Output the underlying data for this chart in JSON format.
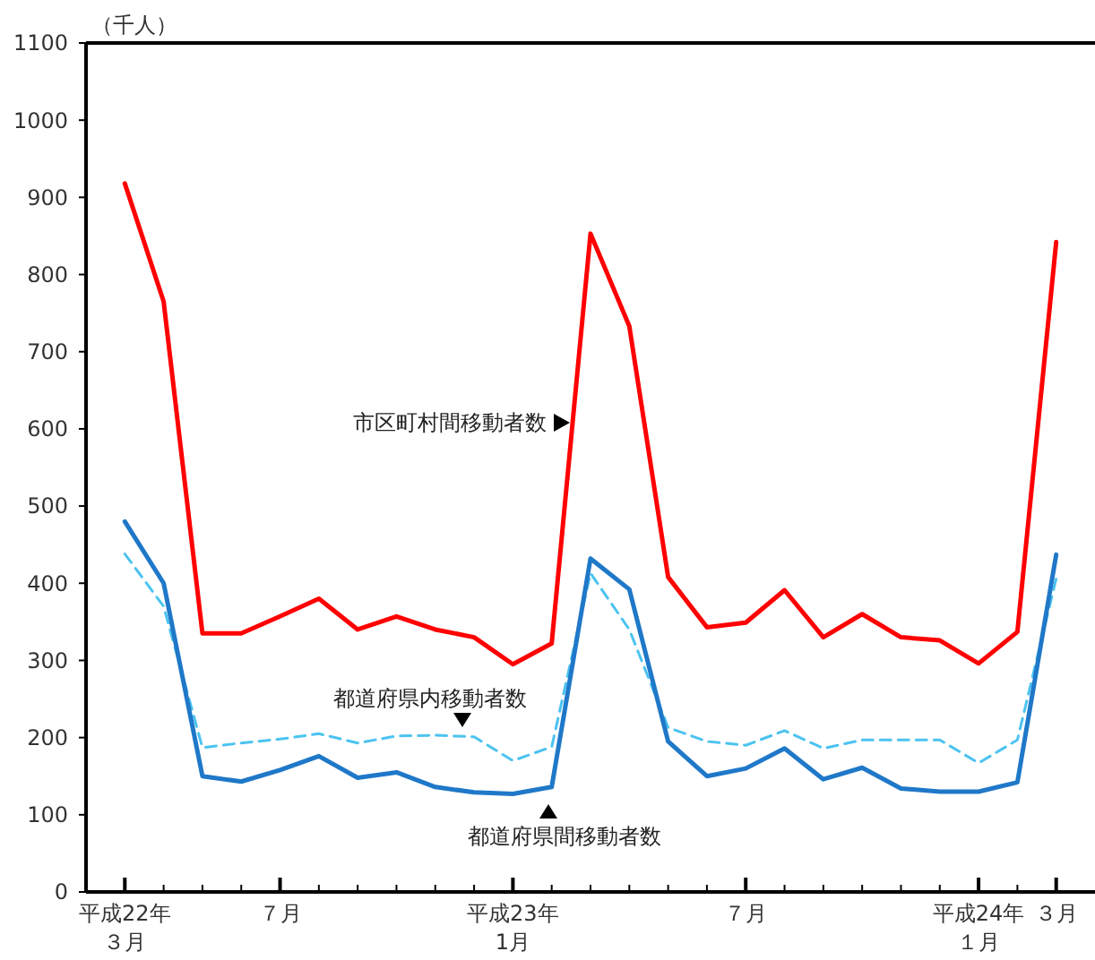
{
  "chart_data": {
    "type": "line",
    "ylabel": "（千人）",
    "categories": [
      "平成22年３月",
      null,
      null,
      null,
      "７月",
      null,
      null,
      null,
      null,
      null,
      "平成23年1月",
      null,
      null,
      null,
      null,
      null,
      "７月",
      null,
      null,
      null,
      null,
      null,
      "平成24年１月",
      null,
      "３月"
    ],
    "series": [
      {
        "name": "市区町村間移動者数",
        "color": "#ff0000",
        "line_style": "solid",
        "values": [
          918,
          765,
          335,
          335,
          357,
          380,
          340,
          357,
          340,
          330,
          295,
          322,
          853,
          733,
          408,
          343,
          349,
          391,
          330,
          360,
          330,
          326,
          296,
          337,
          842
        ]
      },
      {
        "name": "都道府県内移動者数",
        "color": "#4cc3f0",
        "line_style": "dashed",
        "values": [
          438,
          370,
          187,
          193,
          198,
          205,
          193,
          202,
          203,
          201,
          170,
          188,
          413,
          340,
          213,
          195,
          190,
          209,
          186,
          197,
          197,
          197,
          167,
          197,
          406
        ]
      },
      {
        "name": "都道府県間移動者数",
        "color": "#1f78c8",
        "line_style": "solid",
        "values": [
          480,
          400,
          150,
          143,
          158,
          176,
          148,
          155,
          136,
          129,
          127,
          136,
          432,
          392,
          195,
          150,
          160,
          186,
          146,
          161,
          134,
          130,
          130,
          142,
          437
        ]
      }
    ],
    "ylim": [
      0,
      1100
    ],
    "yticks": [
      0,
      100,
      200,
      300,
      400,
      500,
      600,
      700,
      800,
      900,
      1000,
      1100
    ],
    "grid": false,
    "marker": "none"
  }
}
